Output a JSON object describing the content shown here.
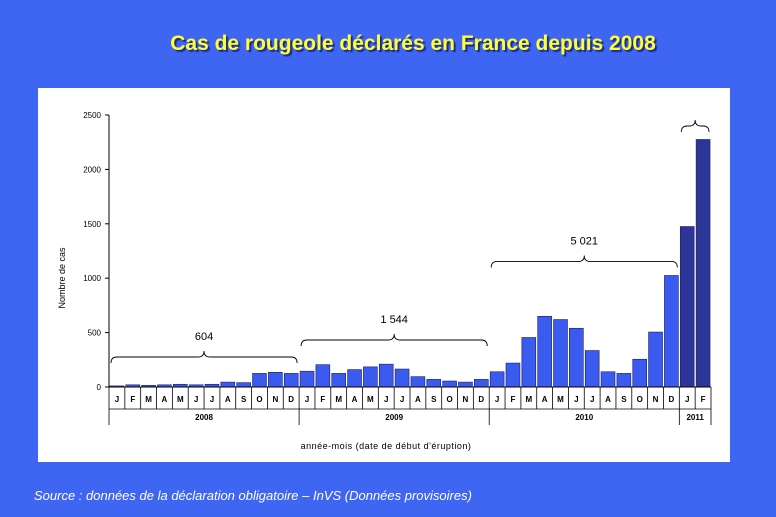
{
  "title": "Cas de rougeole déclarés en France depuis 2008",
  "source": "Source : données de la déclaration obligatoire – InVS (Données provisoires)",
  "colors": {
    "bar_regular": "#3a5af0",
    "bar_highlight": "#2e3599",
    "background": "#3f66f2",
    "title": "#ffff33"
  },
  "chart_data": {
    "type": "bar",
    "xlabel": "année-mois (date de début d'éruption)",
    "ylabel": "Nombre de cas",
    "ylim": [
      0,
      2500
    ],
    "yticks": [
      "0",
      "500",
      "1000",
      "1500",
      "2000",
      "2500"
    ],
    "ytick_values": [
      0,
      500,
      1000,
      1500,
      2000,
      2500
    ],
    "categories": [
      "J",
      "F",
      "M",
      "A",
      "M",
      "J",
      "J",
      "A",
      "S",
      "O",
      "N",
      "D",
      "J",
      "F",
      "M",
      "A",
      "M",
      "J",
      "J",
      "A",
      "S",
      "O",
      "N",
      "D",
      "J",
      "F",
      "M",
      "A",
      "M",
      "J",
      "J",
      "A",
      "S",
      "O",
      "N",
      "D",
      "J",
      "F"
    ],
    "values": [
      10,
      20,
      15,
      20,
      25,
      20,
      25,
      45,
      40,
      125,
      135,
      125,
      145,
      205,
      125,
      160,
      185,
      210,
      165,
      95,
      70,
      55,
      45,
      70,
      140,
      220,
      455,
      650,
      620,
      540,
      335,
      140,
      125,
      255,
      505,
      1025,
      1475,
      2275
    ],
    "highlight_from_index": 36,
    "years": [
      {
        "label": "2008",
        "start": 0,
        "end": 11
      },
      {
        "label": "2009",
        "start": 12,
        "end": 23
      },
      {
        "label": "2010",
        "start": 24,
        "end": 35
      },
      {
        "label": "2011",
        "start": 36,
        "end": 37
      }
    ],
    "annotations": [
      {
        "label": "604",
        "start": 0,
        "end": 11
      },
      {
        "label": "1 544",
        "start": 12,
        "end": 23
      },
      {
        "label": "5 021",
        "start": 24,
        "end": 35
      },
      {
        "label": "",
        "start": 36,
        "end": 37
      }
    ],
    "grid": false,
    "legend": "none"
  }
}
